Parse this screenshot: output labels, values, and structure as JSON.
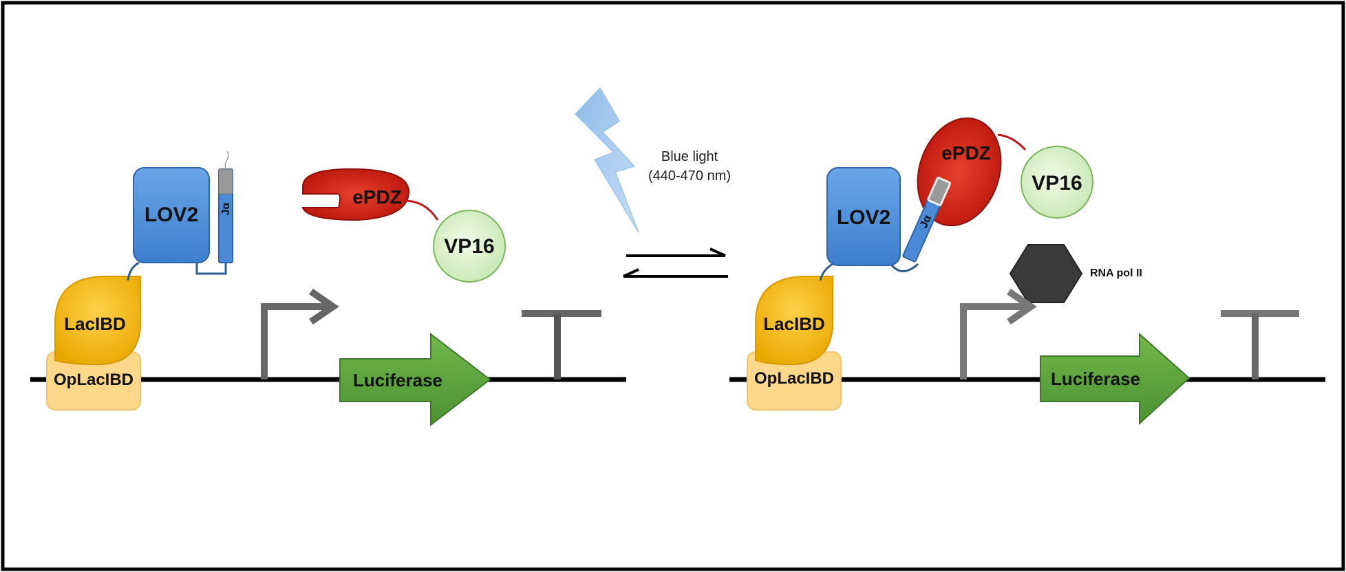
{
  "light": {
    "label_line1": "Blue light",
    "label_line2": "(440-470 nm)"
  },
  "left_panel": {
    "lov2": "LOV2",
    "ja": "Jα",
    "lacibd": "LacIBD",
    "oplacibd": "OpLacIBD",
    "epdz": "ePDZ",
    "vp16": "VP16",
    "gene": "Luciferase"
  },
  "right_panel": {
    "lov2": "LOV2",
    "ja": "Jα",
    "lacibd": "LacIBD",
    "oplacibd": "OpLacIBD",
    "epdz": "ePDZ",
    "vp16": "VP16",
    "gene": "Luciferase",
    "rna_pol": "RNA pol II"
  },
  "colors": {
    "lov2": "#4a8ad6",
    "lacibd": "#f2b600",
    "oplacibd": "#fdd88a",
    "epdz": "#cc2015",
    "vp16": "#d8f0c8",
    "gene": "#5aa03a",
    "rna_pol": "#3a3a3a",
    "lightning": "#a9cdee"
  }
}
